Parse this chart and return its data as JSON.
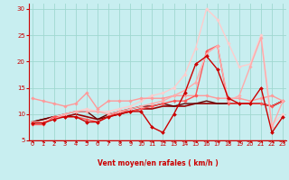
{
  "title": "",
  "xlabel": "Vent moyen/en rafales ( km/h )",
  "xlim": [
    0,
    23
  ],
  "ylim": [
    5,
    31
  ],
  "yticks": [
    5,
    10,
    15,
    20,
    25,
    30
  ],
  "xticks": [
    0,
    1,
    2,
    3,
    4,
    5,
    6,
    7,
    8,
    9,
    10,
    11,
    12,
    13,
    14,
    15,
    16,
    17,
    18,
    19,
    20,
    21,
    22,
    23
  ],
  "bg_color": "#c8eef0",
  "grid_color": "#a0d8d0",
  "series": [
    {
      "x": [
        0,
        1,
        2,
        3,
        4,
        5,
        6,
        7,
        8,
        9,
        10,
        11,
        12,
        13,
        14,
        15,
        16,
        17,
        18,
        19,
        20,
        21,
        22,
        23
      ],
      "y": [
        8.3,
        8.3,
        9.0,
        9.5,
        9.5,
        8.5,
        8.5,
        9.5,
        10.0,
        10.5,
        10.5,
        7.5,
        6.5,
        10.0,
        14.0,
        19.5,
        21.0,
        18.5,
        13.0,
        12.0,
        12.0,
        15.0,
        6.5,
        9.5
      ],
      "color": "#cc0000",
      "lw": 1.0,
      "marker": "D",
      "ms": 2.0,
      "zorder": 5
    },
    {
      "x": [
        0,
        1,
        2,
        3,
        4,
        5,
        6,
        7,
        8,
        9,
        10,
        11,
        12,
        13,
        14,
        15,
        16,
        17,
        18,
        19,
        20,
        21,
        22,
        23
      ],
      "y": [
        8.5,
        9.0,
        9.5,
        9.5,
        10.0,
        9.5,
        9.0,
        9.5,
        10.0,
        10.5,
        11.0,
        11.0,
        11.5,
        11.5,
        11.5,
        12.0,
        12.0,
        12.0,
        12.0,
        12.0,
        12.0,
        12.0,
        11.5,
        12.5
      ],
      "color": "#990000",
      "lw": 1.2,
      "marker": null,
      "ms": 0,
      "zorder": 3
    },
    {
      "x": [
        0,
        1,
        2,
        3,
        4,
        5,
        6,
        7,
        8,
        9,
        10,
        11,
        12,
        13,
        14,
        15,
        16,
        17,
        18,
        19,
        20,
        21,
        22,
        23
      ],
      "y": [
        8.5,
        9.0,
        9.5,
        10.0,
        10.5,
        10.5,
        9.0,
        10.0,
        10.5,
        11.0,
        11.5,
        11.5,
        12.0,
        11.5,
        12.0,
        12.0,
        12.5,
        12.0,
        12.0,
        12.0,
        12.0,
        12.0,
        11.5,
        12.5
      ],
      "color": "#660000",
      "lw": 1.0,
      "marker": null,
      "ms": 0,
      "zorder": 3
    },
    {
      "x": [
        0,
        1,
        2,
        3,
        4,
        5,
        6,
        7,
        8,
        9,
        10,
        11,
        12,
        13,
        14,
        15,
        16,
        17,
        18,
        19,
        20,
        21,
        22,
        23
      ],
      "y": [
        13.0,
        12.5,
        12.0,
        11.5,
        12.0,
        14.0,
        11.0,
        12.5,
        12.5,
        12.5,
        13.0,
        13.0,
        13.0,
        13.5,
        13.5,
        13.5,
        13.5,
        13.0,
        13.0,
        13.0,
        12.5,
        13.0,
        13.5,
        12.5
      ],
      "color": "#ff9999",
      "lw": 1.0,
      "marker": "D",
      "ms": 1.8,
      "zorder": 4
    },
    {
      "x": [
        0,
        1,
        2,
        3,
        4,
        5,
        6,
        7,
        8,
        9,
        10,
        11,
        12,
        13,
        14,
        15,
        16,
        17,
        18,
        19,
        20,
        21,
        22,
        23
      ],
      "y": [
        8.0,
        8.0,
        9.5,
        9.5,
        9.5,
        9.0,
        8.5,
        9.5,
        10.5,
        10.5,
        11.0,
        11.5,
        12.0,
        12.5,
        12.5,
        13.5,
        22.0,
        23.0,
        12.0,
        12.0,
        12.0,
        12.0,
        11.5,
        12.5
      ],
      "color": "#ff5555",
      "lw": 1.0,
      "marker": "D",
      "ms": 1.8,
      "zorder": 4
    },
    {
      "x": [
        0,
        1,
        2,
        3,
        4,
        5,
        6,
        7,
        8,
        9,
        10,
        11,
        12,
        13,
        14,
        15,
        16,
        17,
        18,
        19,
        20,
        21,
        22,
        23
      ],
      "y": [
        8.5,
        8.5,
        9.0,
        10.0,
        10.5,
        10.5,
        10.5,
        10.0,
        10.5,
        11.0,
        11.5,
        12.0,
        12.5,
        13.5,
        14.5,
        16.0,
        21.5,
        23.0,
        12.5,
        13.5,
        19.0,
        24.5,
        7.5,
        12.5
      ],
      "color": "#ffaaaa",
      "lw": 1.0,
      "marker": "D",
      "ms": 1.8,
      "zorder": 4
    },
    {
      "x": [
        0,
        1,
        2,
        3,
        4,
        5,
        6,
        7,
        8,
        9,
        10,
        11,
        12,
        13,
        14,
        15,
        16,
        17,
        18,
        19,
        20,
        21,
        22,
        23
      ],
      "y": [
        8.5,
        8.5,
        9.5,
        10.0,
        10.5,
        11.0,
        10.5,
        10.5,
        11.0,
        11.5,
        12.5,
        13.5,
        14.0,
        15.0,
        17.5,
        22.5,
        30.0,
        28.0,
        23.5,
        19.0,
        19.5,
        25.0,
        8.0,
        10.0
      ],
      "color": "#ffcccc",
      "lw": 1.0,
      "marker": "D",
      "ms": 1.8,
      "zorder": 3
    }
  ],
  "arrow_color": "#cc0000",
  "tick_color": "#cc0000",
  "label_color": "#cc0000",
  "spine_color": "#cc0000"
}
